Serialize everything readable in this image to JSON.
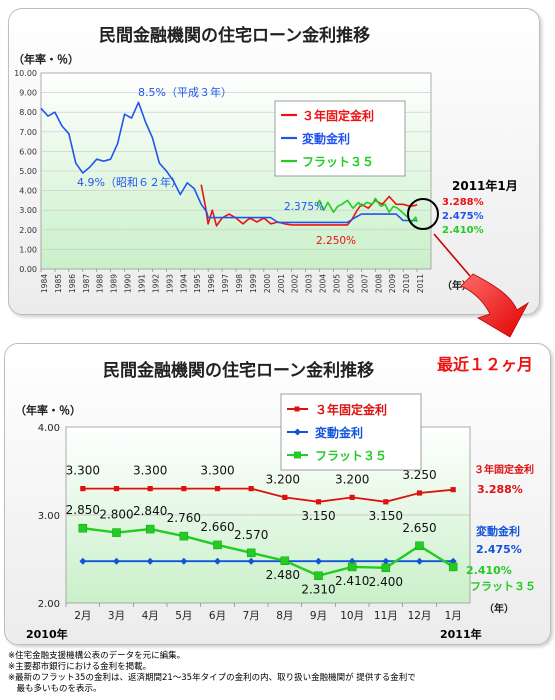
{
  "top_chart": {
    "title": "民間金融機関の住宅ローン金利推移",
    "unit_label": "（年率・％）",
    "year_unit": "（年）",
    "current_label": "2011年1月",
    "chart_data": {
      "type": "line",
      "ylim": [
        0,
        10
      ],
      "yticks": [
        "0.00",
        "1.00",
        "2.00",
        "3.00",
        "4.00",
        "5.00",
        "6.00",
        "7.00",
        "8.00",
        "9.00",
        "10.00"
      ],
      "x_categories": [
        "1984",
        "1985",
        "1986",
        "1987",
        "1988",
        "1989",
        "1990",
        "1991",
        "1992",
        "1993",
        "1994",
        "1995",
        "1996",
        "1997",
        "1998",
        "1999",
        "2000",
        "2001",
        "2002",
        "2003",
        "2004",
        "2005",
        "2006",
        "2007",
        "2008",
        "2009",
        "2010",
        "2011"
      ],
      "series": [
        {
          "name": "３年固定金利",
          "color": "#ee1111",
          "points": [
            [
              1995.5,
              4.3
            ],
            [
              1995.8,
              3.2
            ],
            [
              1996.0,
              2.3
            ],
            [
              1996.3,
              3.0
            ],
            [
              1996.6,
              2.2
            ],
            [
              1997.0,
              2.6
            ],
            [
              1997.5,
              2.8
            ],
            [
              1998.0,
              2.6
            ],
            [
              1998.5,
              2.3
            ],
            [
              1999.0,
              2.6
            ],
            [
              1999.5,
              2.4
            ],
            [
              2000.0,
              2.6
            ],
            [
              2000.5,
              2.3
            ],
            [
              2001.0,
              2.4
            ],
            [
              2001.5,
              2.3
            ],
            [
              2002.0,
              2.25
            ],
            [
              2003.0,
              2.25
            ],
            [
              2004.0,
              2.25
            ],
            [
              2005.0,
              2.25
            ],
            [
              2006.0,
              2.25
            ],
            [
              2006.3,
              2.5
            ],
            [
              2006.7,
              3.0
            ],
            [
              2007.0,
              3.3
            ],
            [
              2007.5,
              3.1
            ],
            [
              2008.0,
              3.5
            ],
            [
              2008.5,
              3.3
            ],
            [
              2009.0,
              3.7
            ],
            [
              2009.5,
              3.3
            ],
            [
              2010.0,
              3.3
            ],
            [
              2010.5,
              3.2
            ],
            [
              2010.9,
              3.25
            ],
            [
              2011.0,
              3.288
            ]
          ]
        },
        {
          "name": "変動金利",
          "color": "#2255ee",
          "points": [
            [
              1984.0,
              8.2
            ],
            [
              1984.5,
              7.8
            ],
            [
              1985.0,
              8.0
            ],
            [
              1985.5,
              7.3
            ],
            [
              1986.0,
              6.9
            ],
            [
              1986.5,
              5.4
            ],
            [
              1987.0,
              4.9
            ],
            [
              1987.5,
              5.2
            ],
            [
              1988.0,
              5.6
            ],
            [
              1988.5,
              5.5
            ],
            [
              1989.0,
              5.6
            ],
            [
              1989.5,
              6.4
            ],
            [
              1990.0,
              7.9
            ],
            [
              1990.5,
              7.7
            ],
            [
              1991.0,
              8.5
            ],
            [
              1991.5,
              7.5
            ],
            [
              1992.0,
              6.7
            ],
            [
              1992.5,
              5.4
            ],
            [
              1993.0,
              5.0
            ],
            [
              1993.5,
              4.5
            ],
            [
              1994.0,
              3.8
            ],
            [
              1994.5,
              4.4
            ],
            [
              1995.0,
              4.1
            ],
            [
              1995.5,
              3.3
            ],
            [
              1995.9,
              2.9
            ],
            [
              1996.0,
              2.625
            ],
            [
              2000.5,
              2.625
            ],
            [
              2001.0,
              2.375
            ],
            [
              2006.0,
              2.375
            ],
            [
              2006.5,
              2.6
            ],
            [
              2007.0,
              2.8
            ],
            [
              2009.5,
              2.8
            ],
            [
              2010.0,
              2.475
            ],
            [
              2011.0,
              2.475
            ]
          ]
        },
        {
          "name": "フラット３５",
          "color": "#22cc22",
          "points": [
            [
              2003.8,
              3.2
            ],
            [
              2004.0,
              3.5
            ],
            [
              2004.3,
              3.0
            ],
            [
              2004.6,
              3.4
            ],
            [
              2005.0,
              2.9
            ],
            [
              2005.3,
              3.2
            ],
            [
              2005.6,
              3.3
            ],
            [
              2006.0,
              3.5
            ],
            [
              2006.4,
              3.1
            ],
            [
              2006.8,
              3.4
            ],
            [
              2007.0,
              3.2
            ],
            [
              2007.4,
              3.4
            ],
            [
              2007.8,
              3.3
            ],
            [
              2008.0,
              3.6
            ],
            [
              2008.4,
              3.2
            ],
            [
              2008.7,
              3.3
            ],
            [
              2009.0,
              2.9
            ],
            [
              2009.3,
              3.2
            ],
            [
              2009.6,
              3.1
            ],
            [
              2010.0,
              2.85
            ],
            [
              2010.3,
              2.66
            ],
            [
              2010.6,
              2.4
            ],
            [
              2010.9,
              2.65
            ],
            [
              2011.0,
              2.41
            ]
          ]
        }
      ],
      "annotations": [
        "8.5%（平成３年）",
        "4.9%（昭和６２年）",
        "2.375%",
        "2.250%",
        "3.288%",
        "2.475%",
        "2.410%"
      ]
    }
  },
  "bottom_chart": {
    "title": "民間金融機関の住宅ローン金利推移",
    "recent_label": "最近１２ヶ月",
    "unit_label": "（年率・％）",
    "year_unit": "（年）",
    "year_start": "2010年",
    "year_end": "2011年",
    "chart_data": {
      "type": "line",
      "categories": [
        "2月",
        "3月",
        "4月",
        "5月",
        "6月",
        "7月",
        "8月",
        "9月",
        "10月",
        "11月",
        "12月",
        "1月"
      ],
      "ylim": [
        2.0,
        4.0
      ],
      "yticks": [
        "2.00",
        "3.00",
        "4.00"
      ],
      "series": [
        {
          "name": "３年固定金利",
          "color": "#dd1111",
          "marker": "square",
          "values": [
            3.3,
            3.3,
            3.3,
            3.3,
            3.3,
            3.3,
            3.2,
            3.15,
            3.2,
            3.15,
            3.25,
            3.288
          ],
          "labels": [
            "3.300",
            "",
            "3.300",
            "",
            "3.300",
            "",
            "3.200",
            "3.150",
            "3.200",
            "3.150",
            "3.250",
            ""
          ]
        },
        {
          "name": "変動金利",
          "color": "#1155dd",
          "marker": "diamond",
          "values": [
            2.475,
            2.475,
            2.475,
            2.475,
            2.475,
            2.475,
            2.475,
            2.475,
            2.475,
            2.475,
            2.475,
            2.475
          ]
        },
        {
          "name": "フラット３５",
          "color": "#22cc22",
          "marker": "square",
          "values": [
            2.85,
            2.8,
            2.84,
            2.76,
            2.66,
            2.57,
            2.48,
            2.31,
            2.41,
            2.4,
            2.65,
            2.41
          ],
          "labels": [
            "2.850",
            "2.800",
            "2.840",
            "2.760",
            "2.660",
            "2.570",
            "2.480",
            "2.310",
            "2.410",
            "2.400",
            "2.650",
            ""
          ]
        }
      ],
      "right_labels": {
        "fixed_name": "３年固定金利",
        "fixed_value": "3.288%",
        "var_name": "変動金利",
        "var_value": "2.475%",
        "flat_value": "2.410%",
        "flat_name": "フラット３５"
      }
    }
  },
  "notes": [
    "※住宅金融支援機構公表のデータを元に編集。",
    "※主要都市銀行における金利を掲載。",
    "※最新のフラット35の金利は、返済期間21～35年タイプの金利の内、取り扱い金融機関が 提供する金利で",
    "　最も多いものを表示。"
  ]
}
